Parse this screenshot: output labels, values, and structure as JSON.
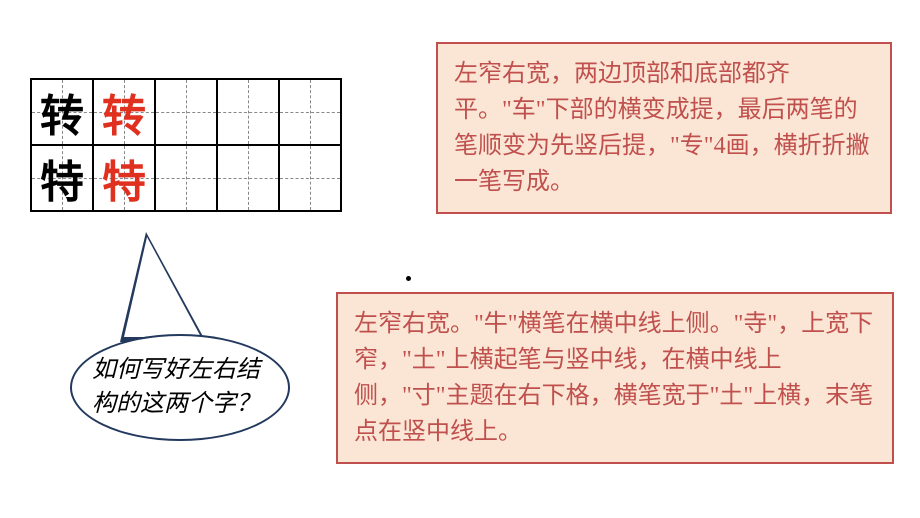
{
  "grid": {
    "rows": [
      {
        "model_black": "转",
        "model_red": "转"
      },
      {
        "model_black": "特",
        "model_red": "特"
      }
    ],
    "blank_cols": 3,
    "colors": {
      "model": "#000000",
      "example": "#e03020"
    }
  },
  "speech": {
    "line1": "如何写好左右结",
    "line2": "构的这两个字？"
  },
  "callout_top": {
    "text": "左窄右宽，两边顶部和底部都齐平。\"车\"下部的横变成提，最后两笔的笔顺变为先竖后提，\"专\"4画，横折折撇一笔写成。"
  },
  "callout_bottom": {
    "text": "左窄右宽。\"牛\"横笔在横中线上侧。\"寺\"，上宽下窄，\"土\"上横起笔与竖中线，在横中线上侧，\"寸\"主题在右下格，横笔宽于\"土\"上横，末笔点在竖中线上。"
  },
  "styles": {
    "callout_bg": "#fbe6d6",
    "callout_border": "#c0504d",
    "callout_text": "#c0504d",
    "bubble_border": "#23395d"
  }
}
